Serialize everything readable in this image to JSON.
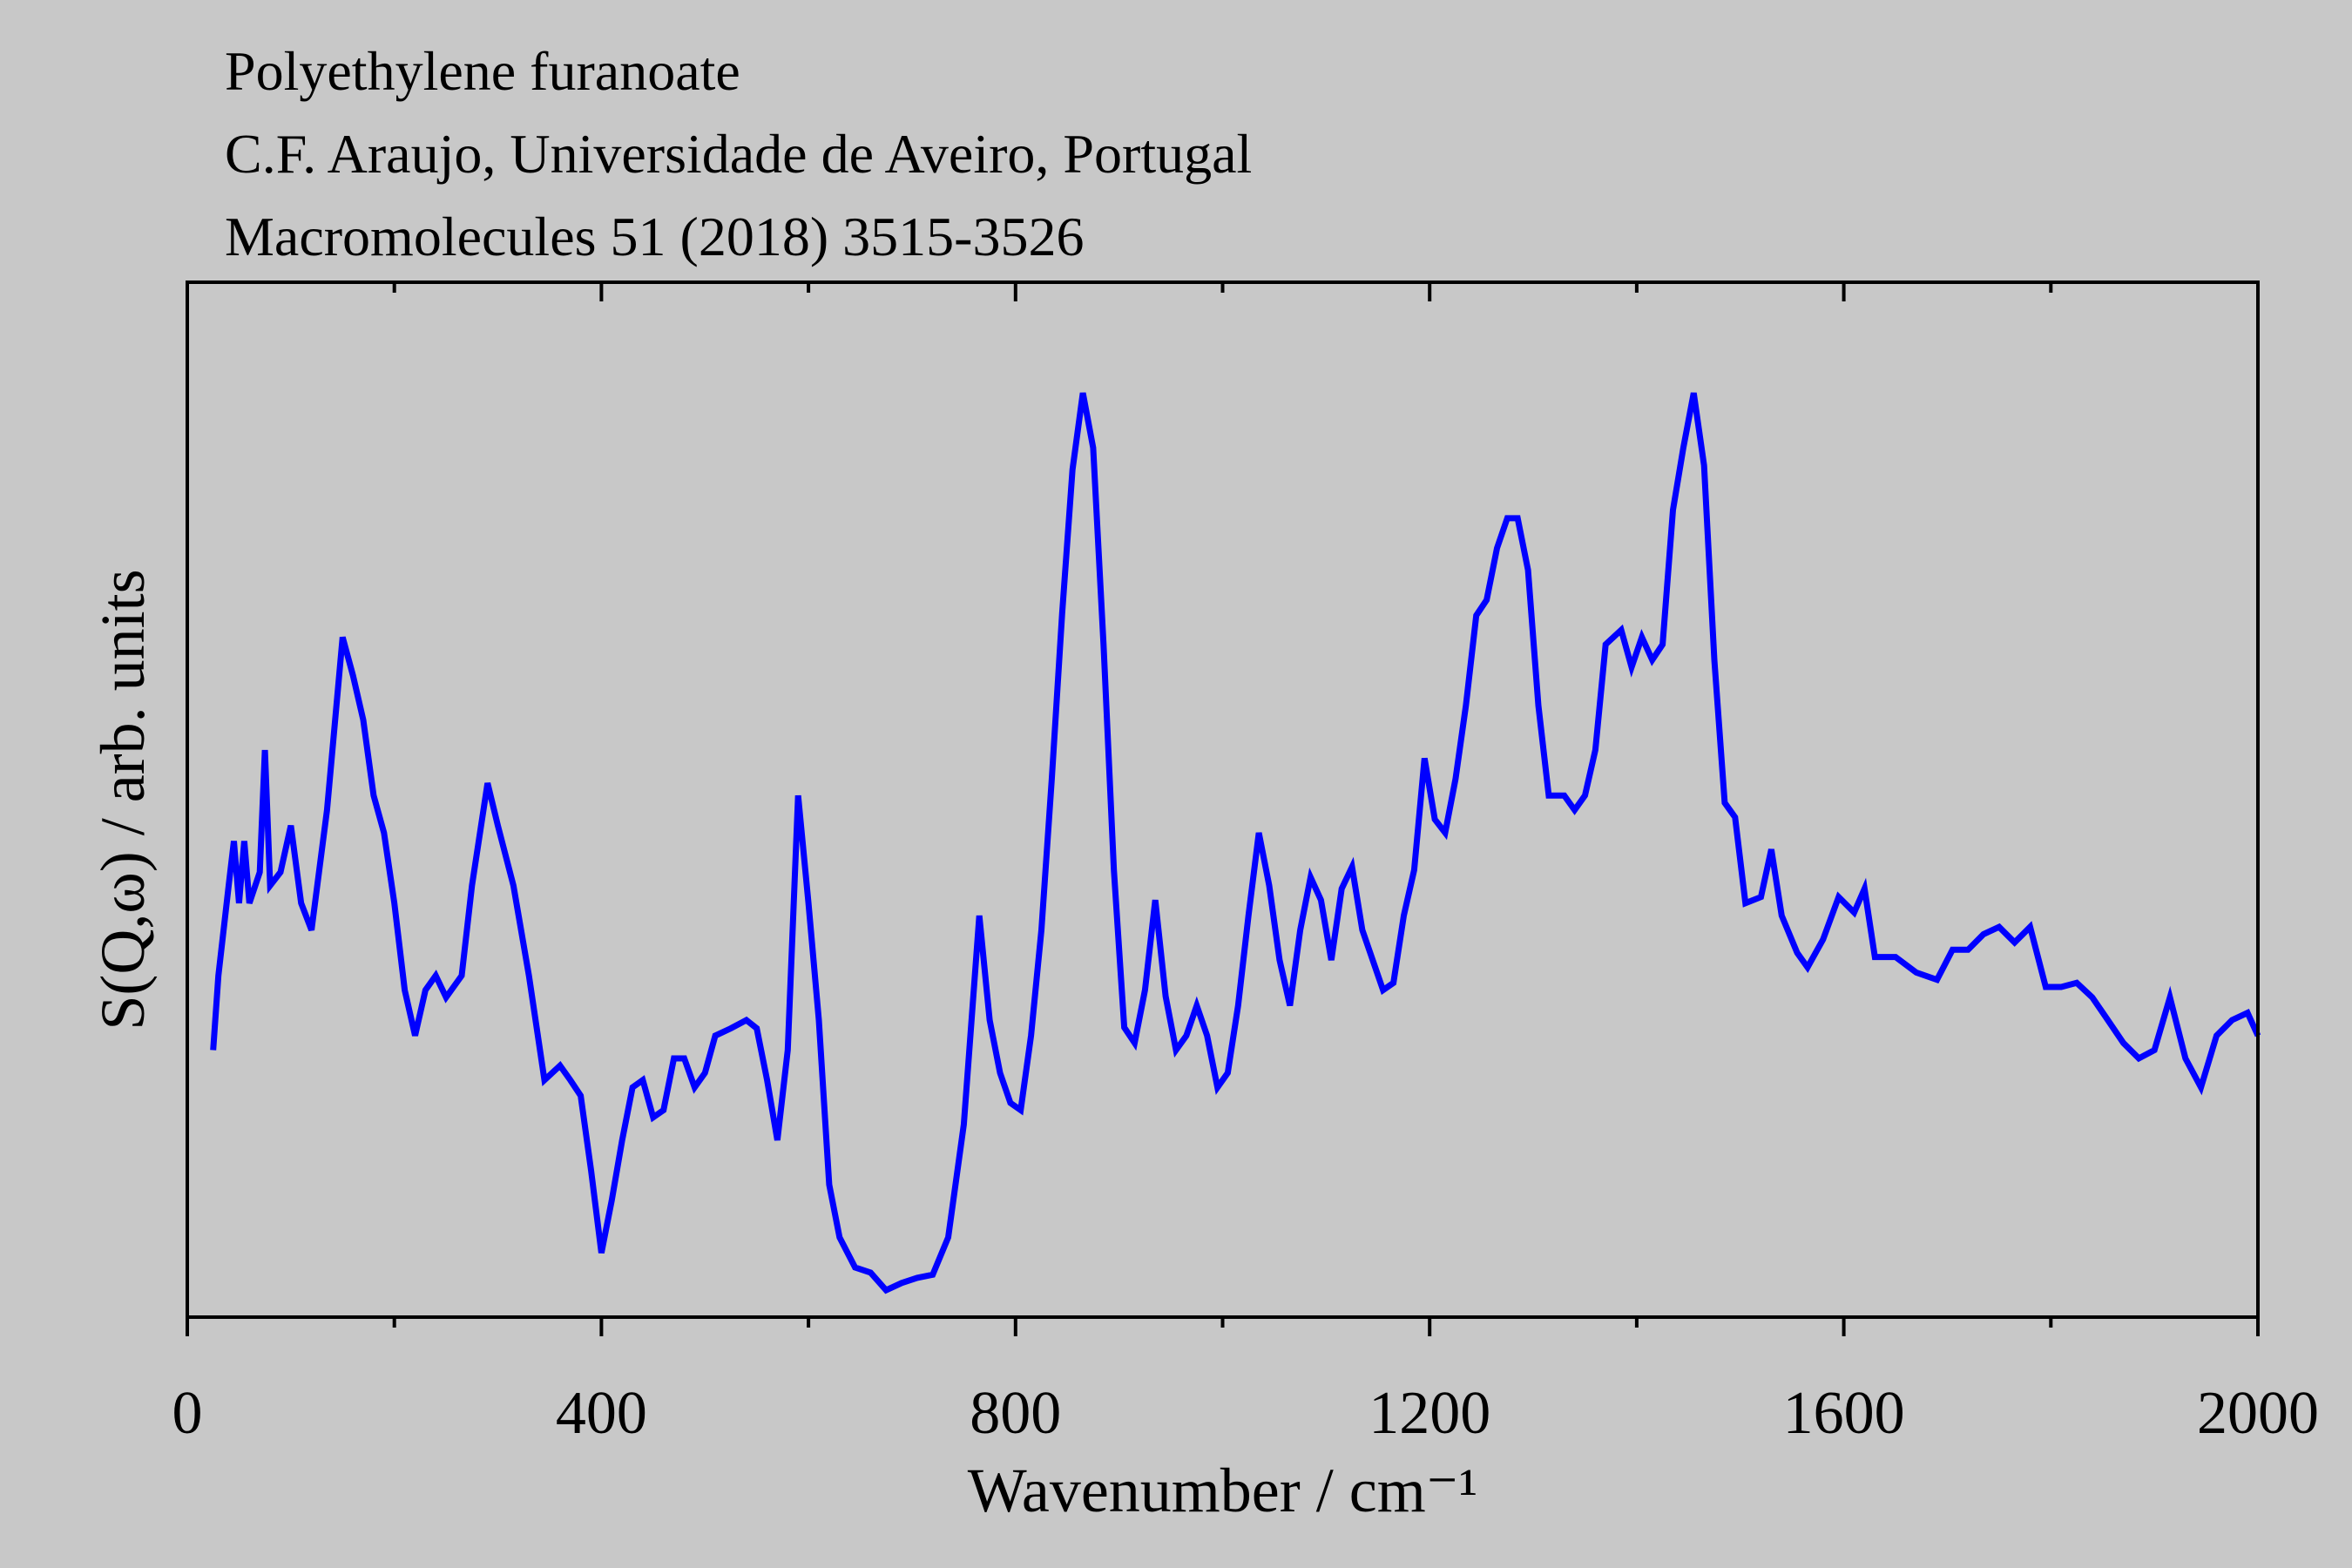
{
  "chart_data": {
    "type": "line",
    "title_lines": [
      "Polyethylene furanoate",
      "C.F. Araujo, Universidade de Aveiro, Portugal",
      "Macromolecules 51 (2018) 3515-3526"
    ],
    "xlabel": "Wavenumber / cm⁻¹",
    "ylabel": "S(Q,ω) / arb. units",
    "xlim": [
      0,
      2000
    ],
    "xticks": [
      0,
      400,
      800,
      1200,
      1600,
      2000
    ],
    "xminorticks": [
      200,
      600,
      1000,
      1400,
      1800
    ],
    "ylim": [
      0,
      100
    ],
    "x": [
      25,
      30,
      40,
      45,
      50,
      55,
      60,
      70,
      75,
      80,
      90,
      100,
      110,
      120,
      135,
      150,
      160,
      170,
      180,
      190,
      200,
      210,
      220,
      230,
      240,
      250,
      265,
      275,
      290,
      300,
      315,
      330,
      345,
      360,
      370,
      380,
      390,
      400,
      410,
      420,
      430,
      440,
      450,
      460,
      470,
      480,
      490,
      500,
      510,
      525,
      540,
      550,
      560,
      570,
      580,
      590,
      600,
      610,
      620,
      630,
      645,
      660,
      675,
      690,
      705,
      720,
      735,
      750,
      765,
      775,
      785,
      795,
      805,
      815,
      825,
      835,
      845,
      855,
      865,
      875,
      885,
      895,
      905,
      915,
      925,
      935,
      945,
      955,
      965,
      975,
      985,
      995,
      1005,
      1015,
      1025,
      1035,
      1045,
      1055,
      1065,
      1075,
      1085,
      1095,
      1105,
      1115,
      1125,
      1135,
      1145,
      1155,
      1165,
      1175,
      1185,
      1195,
      1205,
      1215,
      1225,
      1235,
      1245,
      1255,
      1265,
      1275,
      1285,
      1295,
      1305,
      1315,
      1330,
      1340,
      1350,
      1360,
      1370,
      1385,
      1395,
      1405,
      1415,
      1425,
      1435,
      1445,
      1455,
      1465,
      1475,
      1485,
      1495,
      1505,
      1520,
      1530,
      1540,
      1555,
      1565,
      1580,
      1595,
      1610,
      1620,
      1630,
      1650,
      1670,
      1690,
      1705,
      1720,
      1735,
      1750,
      1765,
      1780,
      1795,
      1810,
      1825,
      1840,
      1855,
      1870,
      1885,
      1900,
      1915,
      1930,
      1945,
      1960,
      1975,
      1990,
      2000
    ],
    "series": [
      {
        "color": "#0000ff",
        "values": [
          25.8,
          33,
          41.7,
          46,
          40,
          46,
          40,
          43,
          54.8,
          41.7,
          43,
          47.5,
          40,
          37.4,
          49,
          65.7,
          62,
          57.7,
          50.4,
          46.8,
          40,
          31.6,
          27.2,
          31.6,
          33,
          30.9,
          33,
          41.7,
          51.6,
          47.5,
          41.7,
          33,
          22.9,
          24.3,
          22.9,
          21.4,
          14.2,
          6.2,
          11.3,
          17.1,
          22.2,
          22.9,
          19.3,
          20,
          25,
          25,
          22.2,
          23.6,
          27.2,
          27.9,
          28.7,
          27.9,
          22.9,
          17.1,
          25.8,
          50.4,
          40,
          28.7,
          12.8,
          7.7,
          4.8,
          4.3,
          2.6,
          3.3,
          3.8,
          4.1,
          7.7,
          18.6,
          38.8,
          28.7,
          23.6,
          20.7,
          20,
          27.2,
          37.4,
          52,
          68,
          81.9,
          89.3,
          84,
          65,
          43.2,
          28,
          26.5,
          31.6,
          40.3,
          31,
          25.8,
          27.2,
          30.1,
          27.2,
          22.2,
          23.6,
          30.1,
          38.8,
          46.8,
          41.7,
          34.5,
          30.1,
          37.4,
          42.5,
          40.3,
          34.5,
          41.4,
          43.5,
          37.4,
          34.5,
          31.6,
          32.3,
          38.8,
          43.2,
          54,
          48.1,
          46.8,
          52,
          59.1,
          67.8,
          69.3,
          74.3,
          77.2,
          77.2,
          72.2,
          59.1,
          50.4,
          50.4,
          49,
          50.4,
          54.8,
          65,
          66.4,
          62.8,
          65.7,
          63.5,
          65,
          78,
          84,
          89.3,
          82.3,
          63.5,
          49.7,
          48.3,
          40,
          40.6,
          45.2,
          38.8,
          35.2,
          33.8,
          36.5,
          40.6,
          39.1,
          41.4,
          34.8,
          34.8,
          33.3,
          32.6,
          35.5,
          35.5,
          37,
          37.7,
          36.2,
          37.7,
          31.9,
          31.9,
          32.3,
          30.9,
          28.7,
          26.5,
          25,
          25.8,
          30.9,
          25,
          22.2,
          27.2,
          28.7,
          29.4,
          27.2
        ]
      }
    ]
  }
}
